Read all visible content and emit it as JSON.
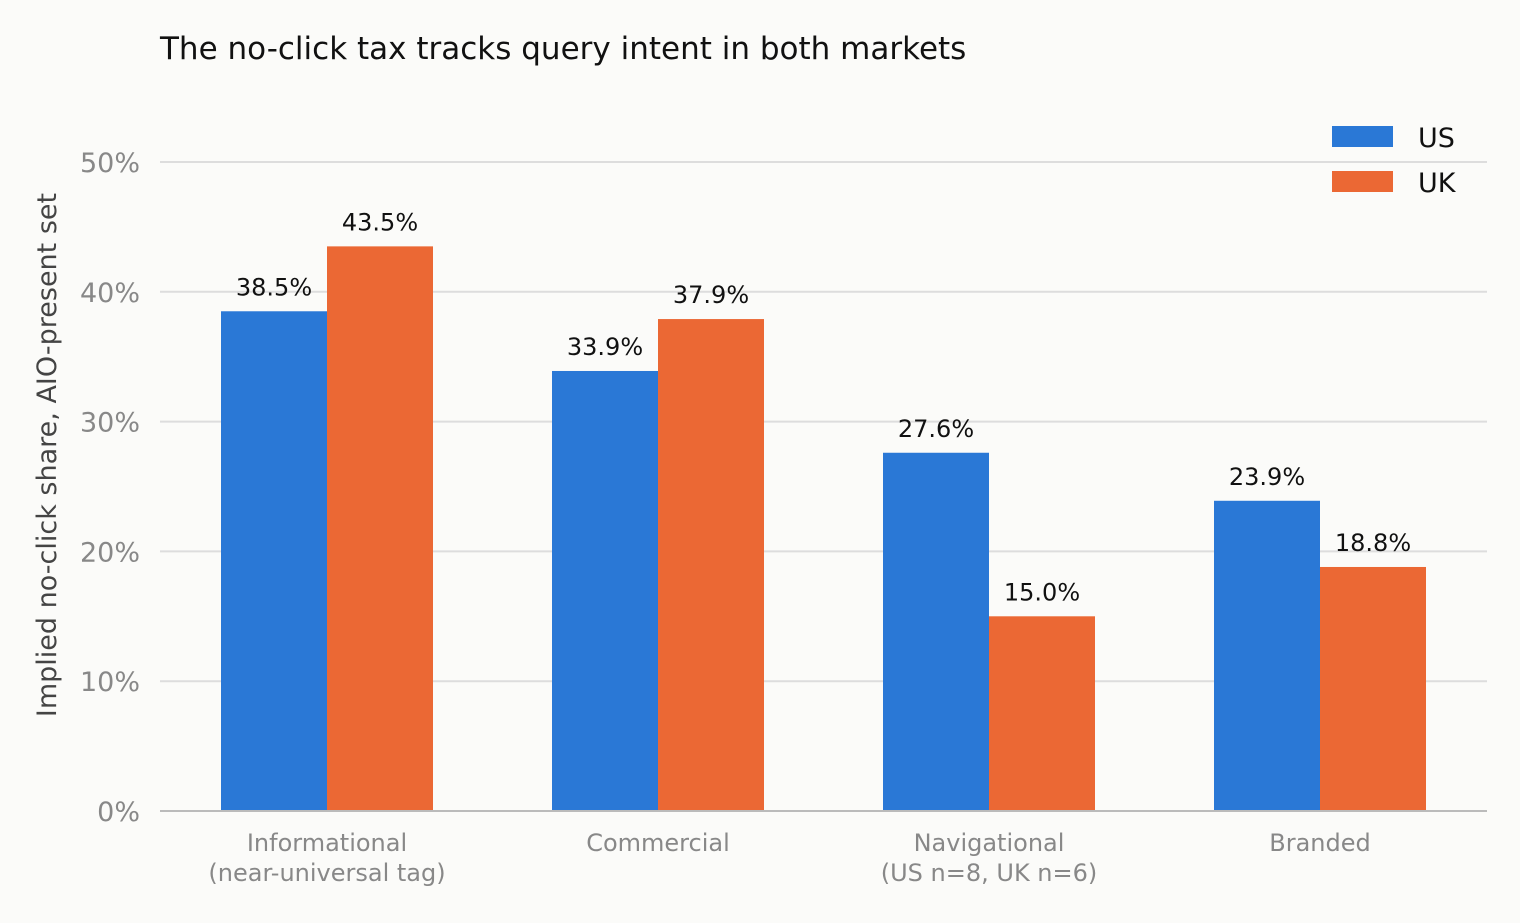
{
  "chart_data": {
    "type": "bar",
    "title": "The no-click tax tracks query intent in both markets",
    "xlabel": "",
    "ylabel": "Implied no-click share, AIO-present set",
    "categories": [
      [
        "Informational",
        "(near-universal tag)"
      ],
      [
        "Commercial"
      ],
      [
        "Navigational",
        "(US n=8, UK n=6)"
      ],
      [
        "Branded"
      ]
    ],
    "series": [
      {
        "name": "US",
        "color": "#2a78d6",
        "values": [
          38.5,
          33.9,
          27.6,
          23.9
        ],
        "labels": [
          "38.5%",
          "33.9%",
          "27.6%",
          "23.9%"
        ]
      },
      {
        "name": "UK",
        "color": "#eb6834",
        "values": [
          43.5,
          37.9,
          15.0,
          18.8
        ],
        "labels": [
          "43.5%",
          "37.9%",
          "15.0%",
          "18.8%"
        ]
      }
    ],
    "ylim": [
      0,
      50
    ],
    "yticks": [
      0,
      10,
      20,
      30,
      40,
      50
    ],
    "ytick_labels": [
      "0%",
      "10%",
      "20%",
      "30%",
      "40%",
      "50%"
    ],
    "grid": true,
    "legend_position": "top-right",
    "colors": {
      "grid": "#dddddd",
      "axis": "#bbbbbb",
      "tick_text": "#888888",
      "label_text": "#444444",
      "value_text": "#111111",
      "background": "#fbfbf9"
    }
  }
}
